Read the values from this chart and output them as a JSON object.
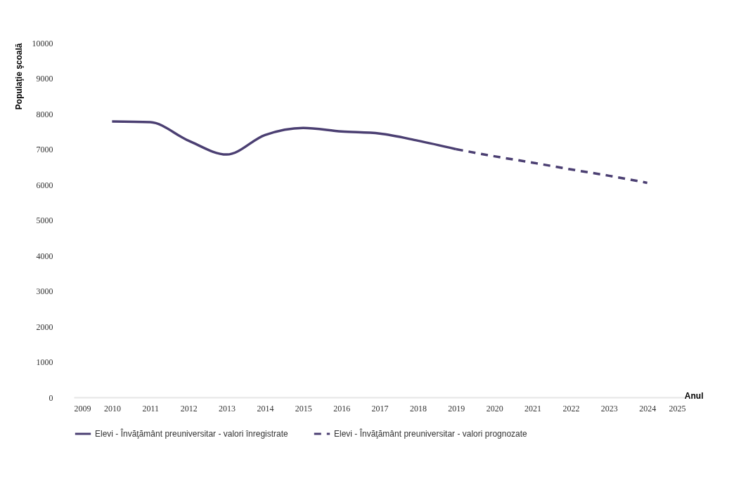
{
  "chart_data": {
    "type": "line",
    "xlabel": "Anul",
    "ylabel": "Populaţie şcoală",
    "xlim": [
      2009,
      2025
    ],
    "xticks": [
      2009,
      2010,
      2011,
      2012,
      2013,
      2014,
      2015,
      2016,
      2017,
      2018,
      2019,
      2020,
      2021,
      2022,
      2023,
      2024,
      2025
    ],
    "ylim": [
      0,
      10000
    ],
    "yticks": [
      0,
      1000,
      2000,
      3000,
      4000,
      5000,
      6000,
      7000,
      8000,
      9000,
      10000
    ],
    "grid": false,
    "legend": "bottom",
    "marker": "none",
    "series": [
      {
        "name": "Elevi - Învăţământ preuniversitar - valori înregistrate",
        "color": "#4b3f72",
        "line_style": "solid",
        "x": [
          2010,
          2011,
          2012,
          2013,
          2014,
          2015,
          2016,
          2017,
          2018,
          2019
        ],
        "values": [
          7780,
          7760,
          7240,
          6850,
          7400,
          7600,
          7500,
          7440,
          7240,
          7000
        ]
      },
      {
        "name": "Elevi - Învăţământ preuniversitar - valori prognozate",
        "color": "#4b3f72",
        "line_style": "dashed",
        "x": [
          2019,
          2020,
          2021,
          2022,
          2023,
          2024
        ],
        "values": [
          7000,
          6800,
          6620,
          6430,
          6250,
          6050
        ]
      }
    ]
  }
}
